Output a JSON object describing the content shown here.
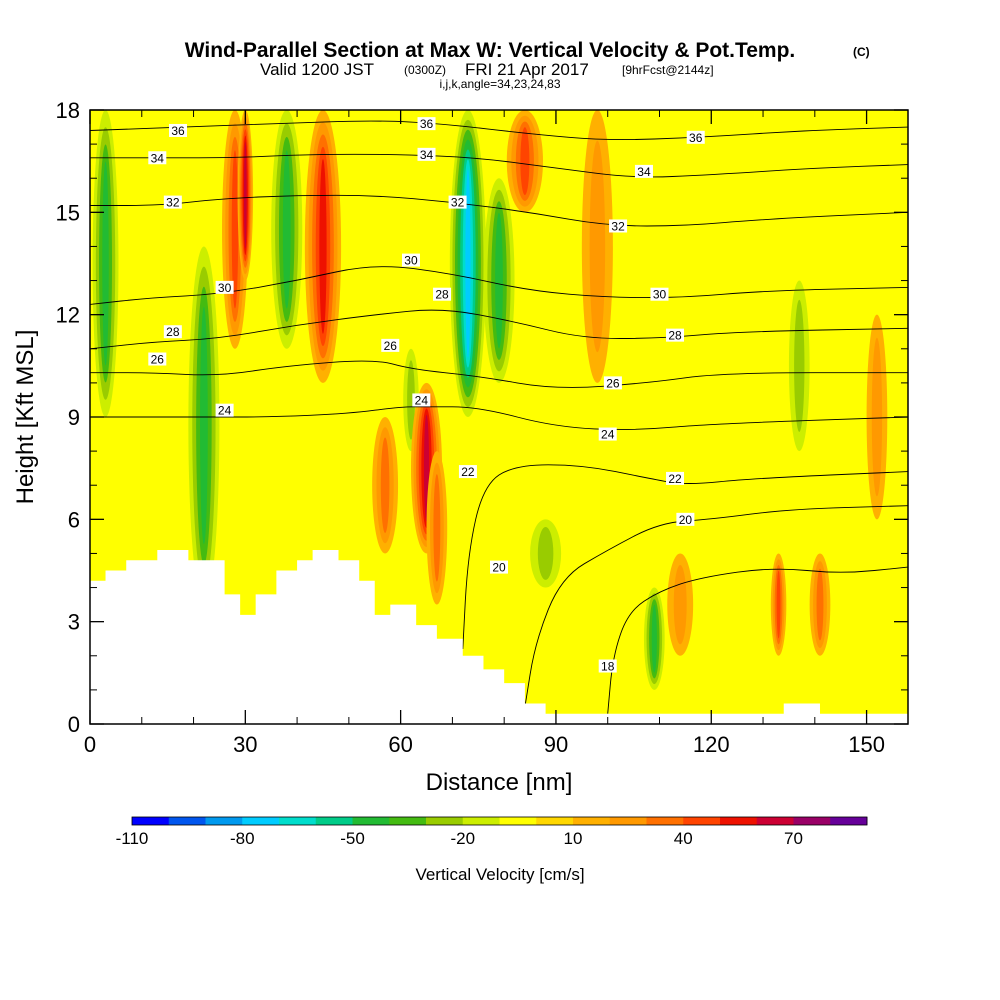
{
  "title": {
    "main": "Wind-Parallel Section at Max W: Vertical Velocity & Pot.Temp.",
    "main_tag": "(C)",
    "valid_prefix": "Valid 1200 JST",
    "valid_utc": "(0300Z)",
    "valid_date": "FRI 21 Apr 2017",
    "forecast_tag": "[9hrFcst@2144z]",
    "indices": "i,j,k,angle=34,23,24,83"
  },
  "chart_data": {
    "type": "heatmap",
    "title": "Wind-Parallel Section at Max W: Vertical Velocity & Pot.Temp.",
    "xlabel": "Distance [nm]",
    "ylabel": "Height [Kft MSL]",
    "xlim": [
      0,
      158
    ],
    "ylim": [
      0,
      18
    ],
    "x_ticks": [
      0,
      30,
      60,
      90,
      120,
      150
    ],
    "x_tick_labels": [
      "0",
      "30",
      "60",
      "90",
      "120",
      "150"
    ],
    "y_ticks": [
      0,
      3,
      6,
      9,
      12,
      15,
      18
    ],
    "y_tick_labels": [
      "0",
      "3",
      "6",
      "9",
      "12",
      "15",
      "18"
    ],
    "colorbar": {
      "label": "Vertical Velocity [cm/s]",
      "min": -110,
      "max": 90,
      "step": 10,
      "tick_values": [
        -110,
        -80,
        -50,
        -20,
        10,
        40,
        70
      ],
      "tick_labels": [
        "-110",
        "-80",
        "-50",
        "-20",
        "10",
        "40",
        "70"
      ],
      "colors": [
        "#0000ff",
        "#0055ee",
        "#0099ee",
        "#00ccff",
        "#00ddcc",
        "#00cc88",
        "#22bb33",
        "#44bb11",
        "#99cc00",
        "#ccee00",
        "#ffff00",
        "#ffd700",
        "#ffb000",
        "#ff9900",
        "#ff7000",
        "#ff4400",
        "#ee1100",
        "#cc0033",
        "#990066",
        "#660099"
      ]
    },
    "terrain_profile": [
      [
        0,
        4.2
      ],
      [
        3,
        4.5
      ],
      [
        7,
        4.8
      ],
      [
        13,
        5.1
      ],
      [
        19,
        4.8
      ],
      [
        26,
        3.8
      ],
      [
        29,
        3.2
      ],
      [
        32,
        3.8
      ],
      [
        36,
        4.5
      ],
      [
        40,
        4.8
      ],
      [
        43,
        5.1
      ],
      [
        48,
        4.8
      ],
      [
        52,
        4.2
      ],
      [
        55,
        3.2
      ],
      [
        58,
        3.5
      ],
      [
        63,
        2.9
      ],
      [
        67,
        2.5
      ],
      [
        72,
        2.0
      ],
      [
        76,
        1.6
      ],
      [
        80,
        1.2
      ],
      [
        84,
        0.6
      ],
      [
        88,
        0.3
      ],
      [
        133,
        0.3
      ],
      [
        134,
        0.6
      ],
      [
        140,
        0.6
      ],
      [
        141,
        0.3
      ],
      [
        156,
        0.3
      ],
      [
        158,
        0.6
      ]
    ],
    "w_columns": [
      {
        "x": 3,
        "half_width": 2.5,
        "y_range": [
          9,
          18
        ],
        "w": -40
      },
      {
        "x": 22,
        "half_width": 3,
        "y_range": [
          3.5,
          14
        ],
        "w": -40
      },
      {
        "x": 28,
        "half_width": 2.5,
        "y_range": [
          11,
          18
        ],
        "w": 45
      },
      {
        "x": 30,
        "half_width": 1.5,
        "y_range": [
          13,
          18
        ],
        "w": 60
      },
      {
        "x": 38,
        "half_width": 3,
        "y_range": [
          11,
          18
        ],
        "w": -45
      },
      {
        "x": 45,
        "half_width": 3.5,
        "y_range": [
          10,
          18
        ],
        "w": 55
      },
      {
        "x": 57,
        "half_width": 2.5,
        "y_range": [
          5,
          9
        ],
        "w": 30
      },
      {
        "x": 62,
        "half_width": 1.5,
        "y_range": [
          8,
          11
        ],
        "w": -25
      },
      {
        "x": 65,
        "half_width": 3,
        "y_range": [
          5,
          10
        ],
        "w": 60
      },
      {
        "x": 67,
        "half_width": 2,
        "y_range": [
          3.5,
          8
        ],
        "w": 35
      },
      {
        "x": 73,
        "half_width": 3.5,
        "y_range": [
          9,
          18
        ],
        "w": -70
      },
      {
        "x": 79,
        "half_width": 3,
        "y_range": [
          10,
          16
        ],
        "w": -40
      },
      {
        "x": 84,
        "half_width": 3.5,
        "y_range": [
          15,
          18
        ],
        "w": 45
      },
      {
        "x": 88,
        "half_width": 3,
        "y_range": [
          4,
          6
        ],
        "w": -25
      },
      {
        "x": 98,
        "half_width": 3,
        "y_range": [
          10,
          18
        ],
        "w": 20
      },
      {
        "x": 109,
        "half_width": 2,
        "y_range": [
          1,
          4
        ],
        "w": -40
      },
      {
        "x": 114,
        "half_width": 2.5,
        "y_range": [
          2,
          5
        ],
        "w": 25
      },
      {
        "x": 133,
        "half_width": 1.5,
        "y_range": [
          2,
          5
        ],
        "w": 45
      },
      {
        "x": 137,
        "half_width": 2,
        "y_range": [
          8,
          13
        ],
        "w": -20
      },
      {
        "x": 141,
        "half_width": 2,
        "y_range": [
          2,
          5
        ],
        "w": 35
      },
      {
        "x": 152,
        "half_width": 2,
        "y_range": [
          6,
          12
        ],
        "w": 20
      }
    ],
    "theta_contours": [
      {
        "value": 18,
        "points": [
          [
            100,
            0.3
          ],
          [
            101,
            2.0
          ],
          [
            104,
            3.3
          ],
          [
            110,
            3.9
          ],
          [
            118,
            4.3
          ],
          [
            132,
            4.6
          ],
          [
            145,
            4.4
          ],
          [
            158,
            4.6
          ]
        ]
      },
      {
        "value": 20,
        "points": [
          [
            84,
            0.5
          ],
          [
            86,
            2.4
          ],
          [
            91,
            4.3
          ],
          [
            100,
            5.1
          ],
          [
            110,
            5.9
          ],
          [
            120,
            6.0
          ],
          [
            135,
            6.3
          ],
          [
            158,
            6.4
          ]
        ]
      },
      {
        "value": 22,
        "points": [
          [
            72,
            2.2
          ],
          [
            73,
            5.0
          ],
          [
            76,
            7.0
          ],
          [
            82,
            7.6
          ],
          [
            95,
            7.6
          ],
          [
            108,
            7.2
          ],
          [
            115,
            7.0
          ],
          [
            128,
            7.2
          ],
          [
            158,
            7.4
          ]
        ]
      },
      {
        "value": 24,
        "points": [
          [
            0,
            9.0
          ],
          [
            10,
            9.0
          ],
          [
            22,
            9.0
          ],
          [
            35,
            9.0
          ],
          [
            50,
            9.1
          ],
          [
            60,
            9.3
          ],
          [
            65,
            9.3
          ],
          [
            75,
            9.3
          ],
          [
            90,
            8.7
          ],
          [
            105,
            8.6
          ],
          [
            120,
            8.8
          ],
          [
            158,
            9.0
          ]
        ]
      },
      {
        "value": 26,
        "points": [
          [
            0,
            10.3
          ],
          [
            12,
            10.3
          ],
          [
            25,
            10.2
          ],
          [
            38,
            10.5
          ],
          [
            55,
            10.7
          ],
          [
            62,
            10.4
          ],
          [
            75,
            10.2
          ],
          [
            90,
            9.8
          ],
          [
            108,
            10.0
          ],
          [
            122,
            10.3
          ],
          [
            158,
            10.3
          ]
        ]
      },
      {
        "value": 28,
        "points": [
          [
            0,
            11.0
          ],
          [
            12,
            11.2
          ],
          [
            25,
            11.3
          ],
          [
            40,
            11.7
          ],
          [
            55,
            12.0
          ],
          [
            68,
            12.2
          ],
          [
            82,
            11.8
          ],
          [
            95,
            11.3
          ],
          [
            110,
            11.3
          ],
          [
            125,
            11.5
          ],
          [
            158,
            11.6
          ]
        ]
      },
      {
        "value": 30,
        "points": [
          [
            0,
            12.3
          ],
          [
            12,
            12.5
          ],
          [
            25,
            12.6
          ],
          [
            40,
            13.0
          ],
          [
            55,
            13.5
          ],
          [
            70,
            13.2
          ],
          [
            85,
            12.7
          ],
          [
            100,
            12.5
          ],
          [
            115,
            12.5
          ],
          [
            130,
            12.7
          ],
          [
            158,
            12.8
          ]
        ]
      },
      {
        "value": 32,
        "points": [
          [
            0,
            15.2
          ],
          [
            14,
            15.2
          ],
          [
            25,
            15.4
          ],
          [
            40,
            15.5
          ],
          [
            55,
            15.5
          ],
          [
            70,
            15.3
          ],
          [
            85,
            15.0
          ],
          [
            100,
            14.6
          ],
          [
            115,
            14.6
          ],
          [
            130,
            14.8
          ],
          [
            158,
            15.0
          ]
        ]
      },
      {
        "value": 34,
        "points": [
          [
            0,
            16.6
          ],
          [
            14,
            16.6
          ],
          [
            28,
            16.6
          ],
          [
            42,
            16.7
          ],
          [
            60,
            16.7
          ],
          [
            75,
            16.6
          ],
          [
            90,
            16.3
          ],
          [
            105,
            16.0
          ],
          [
            120,
            16.1
          ],
          [
            140,
            16.3
          ],
          [
            158,
            16.4
          ]
        ]
      },
      {
        "value": 36,
        "points": [
          [
            0,
            17.4
          ],
          [
            18,
            17.5
          ],
          [
            36,
            17.6
          ],
          [
            55,
            17.7
          ],
          [
            68,
            17.6
          ],
          [
            85,
            17.3
          ],
          [
            100,
            17.1
          ],
          [
            118,
            17.2
          ],
          [
            138,
            17.4
          ],
          [
            158,
            17.5
          ]
        ]
      }
    ],
    "contour_labels": [
      {
        "text": "36",
        "x": 17,
        "y": 17.4
      },
      {
        "text": "36",
        "x": 65,
        "y": 17.6
      },
      {
        "text": "36",
        "x": 117,
        "y": 17.2
      },
      {
        "text": "34",
        "x": 13,
        "y": 16.6
      },
      {
        "text": "34",
        "x": 65,
        "y": 16.7
      },
      {
        "text": "34",
        "x": 107,
        "y": 16.2
      },
      {
        "text": "32",
        "x": 16,
        "y": 15.3
      },
      {
        "text": "32",
        "x": 71,
        "y": 15.3
      },
      {
        "text": "32",
        "x": 102,
        "y": 14.6
      },
      {
        "text": "30",
        "x": 26,
        "y": 12.8
      },
      {
        "text": "30",
        "x": 62,
        "y": 13.6
      },
      {
        "text": "30",
        "x": 110,
        "y": 12.6
      },
      {
        "text": "28",
        "x": 16,
        "y": 11.5
      },
      {
        "text": "28",
        "x": 68,
        "y": 12.6
      },
      {
        "text": "28",
        "x": 113,
        "y": 11.4
      },
      {
        "text": "26",
        "x": 13,
        "y": 10.7
      },
      {
        "text": "26",
        "x": 58,
        "y": 11.1
      },
      {
        "text": "26",
        "x": 101,
        "y": 10.0
      },
      {
        "text": "24",
        "x": 26,
        "y": 9.2
      },
      {
        "text": "24",
        "x": 64,
        "y": 9.5
      },
      {
        "text": "24",
        "x": 100,
        "y": 8.5
      },
      {
        "text": "22",
        "x": 73,
        "y": 7.4
      },
      {
        "text": "22",
        "x": 113,
        "y": 7.2
      },
      {
        "text": "20",
        "x": 79,
        "y": 4.6
      },
      {
        "text": "20",
        "x": 115,
        "y": 6.0
      },
      {
        "text": "18",
        "x": 100,
        "y": 1.7
      }
    ]
  }
}
